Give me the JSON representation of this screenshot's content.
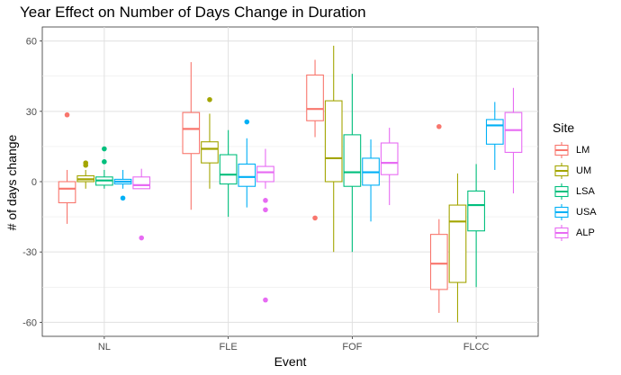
{
  "chart_data": {
    "type": "boxplot",
    "title": "Year Effect on Number of Days Change in Duration",
    "xlabel": "Event",
    "ylabel": "# of days change",
    "ylim": [
      -66,
      66
    ],
    "yticks": [
      -60,
      -30,
      0,
      30,
      60
    ],
    "categories": [
      "NL",
      "FLE",
      "FOF",
      "FLCC"
    ],
    "legend": {
      "title": "Site",
      "position": "right"
    },
    "grid": true,
    "series": [
      {
        "name": "LM",
        "color": "#F8766D",
        "boxes": [
          {
            "min": -18,
            "q1": -9,
            "median": -3,
            "q3": 0,
            "max": 5,
            "outliers": [
              28.5
            ]
          },
          {
            "min": -12,
            "q1": 12,
            "median": 22.5,
            "q3": 29.5,
            "max": 51,
            "outliers": []
          },
          {
            "min": 19,
            "q1": 26,
            "median": 31,
            "q3": 45.5,
            "max": 52,
            "outliers": [
              -15.5
            ]
          },
          {
            "min": -56,
            "q1": -46,
            "median": -35,
            "q3": -22.5,
            "max": -16,
            "outliers": [
              23.5
            ]
          }
        ]
      },
      {
        "name": "UM",
        "color": "#A3A500",
        "boxes": [
          {
            "min": -3,
            "q1": 0,
            "median": 1,
            "q3": 2.5,
            "max": 5,
            "outliers": [
              7,
              8
            ]
          },
          {
            "min": -3,
            "q1": 8,
            "median": 14,
            "q3": 17,
            "max": 29,
            "outliers": [
              35
            ]
          },
          {
            "min": -30,
            "q1": 0,
            "median": 10,
            "q3": 34.5,
            "max": 58,
            "outliers": []
          },
          {
            "min": -60,
            "q1": -43,
            "median": -17,
            "q3": -10,
            "max": 3.5,
            "outliers": []
          }
        ]
      },
      {
        "name": "LSA",
        "color": "#00BF7D",
        "boxes": [
          {
            "min": -3,
            "q1": -1.5,
            "median": 0.5,
            "q3": 2,
            "max": 5,
            "outliers": [
              14,
              8.5
            ]
          },
          {
            "min": -15,
            "q1": -1,
            "median": 3,
            "q3": 11.5,
            "max": 22,
            "outliers": []
          },
          {
            "min": -30,
            "q1": -2,
            "median": 4,
            "q3": 20,
            "max": 46,
            "outliers": []
          },
          {
            "min": -45,
            "q1": -21,
            "median": -10,
            "q3": -4,
            "max": 7.5,
            "outliers": []
          }
        ]
      },
      {
        "name": "USA",
        "color": "#00B0F6",
        "boxes": [
          {
            "min": -3,
            "q1": -1,
            "median": 0,
            "q3": 1,
            "max": 5,
            "outliers": [
              -7
            ]
          },
          {
            "min": -11,
            "q1": -2,
            "median": 2,
            "q3": 7.5,
            "max": 18.5,
            "outliers": [
              25.5
            ]
          },
          {
            "min": -17,
            "q1": -1.5,
            "median": 4,
            "q3": 10,
            "max": 18,
            "outliers": []
          },
          {
            "min": 5,
            "q1": 16,
            "median": 24,
            "q3": 26.5,
            "max": 34,
            "outliers": []
          }
        ]
      },
      {
        "name": "ALP",
        "color": "#E76BF3",
        "boxes": [
          {
            "min": -3,
            "q1": -3,
            "median": -1.5,
            "q3": 2,
            "max": 5.5,
            "outliers": [
              -24
            ]
          },
          {
            "min": -3,
            "q1": 0,
            "median": 4,
            "q3": 6.5,
            "max": 14,
            "outliers": [
              -8,
              -12,
              -50.5
            ]
          },
          {
            "min": -10,
            "q1": 3,
            "median": 8,
            "q3": 16.5,
            "max": 23,
            "outliers": []
          },
          {
            "min": -5,
            "q1": 12.5,
            "median": 22,
            "q3": 29.5,
            "max": 40,
            "outliers": []
          }
        ]
      }
    ]
  }
}
